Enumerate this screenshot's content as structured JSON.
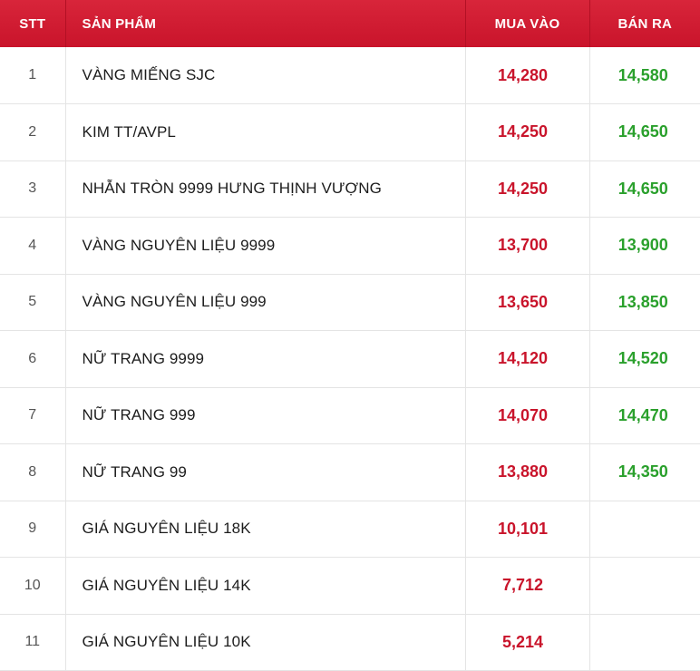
{
  "table": {
    "headers": {
      "stt": "STT",
      "product": "SẢN PHẨM",
      "buy": "MUA VÀO",
      "sell": "BÁN RA"
    },
    "rows": [
      {
        "stt": "1",
        "product": "VÀNG MIẾNG SJC",
        "buy": "14,280",
        "sell": "14,580"
      },
      {
        "stt": "2",
        "product": "KIM TT/AVPL",
        "buy": "14,250",
        "sell": "14,650"
      },
      {
        "stt": "3",
        "product": "NHẪN TRÒN 9999 HƯNG THỊNH VƯỢNG",
        "buy": "14,250",
        "sell": "14,650"
      },
      {
        "stt": "4",
        "product": "VÀNG NGUYÊN LIỆU 9999",
        "buy": "13,700",
        "sell": "13,900"
      },
      {
        "stt": "5",
        "product": "VÀNG NGUYÊN LIỆU 999",
        "buy": "13,650",
        "sell": "13,850"
      },
      {
        "stt": "6",
        "product": "NỮ TRANG 9999",
        "buy": "14,120",
        "sell": "14,520"
      },
      {
        "stt": "7",
        "product": "NỮ TRANG 999",
        "buy": "14,070",
        "sell": "14,470"
      },
      {
        "stt": "8",
        "product": "NỮ TRANG 99",
        "buy": "13,880",
        "sell": "14,350"
      },
      {
        "stt": "9",
        "product": "GIÁ NGUYÊN LIỆU 18K",
        "buy": "10,101",
        "sell": ""
      },
      {
        "stt": "10",
        "product": "GIÁ NGUYÊN LIỆU 14K",
        "buy": "7,712",
        "sell": ""
      },
      {
        "stt": "11",
        "product": "GIÁ NGUYÊN LIỆU 10K",
        "buy": "5,214",
        "sell": ""
      }
    ]
  },
  "colors": {
    "header_bg": "#d01c33",
    "buy_price": "#c9142b",
    "sell_price": "#2aa02c",
    "grid_line": "#e4e4e4"
  }
}
